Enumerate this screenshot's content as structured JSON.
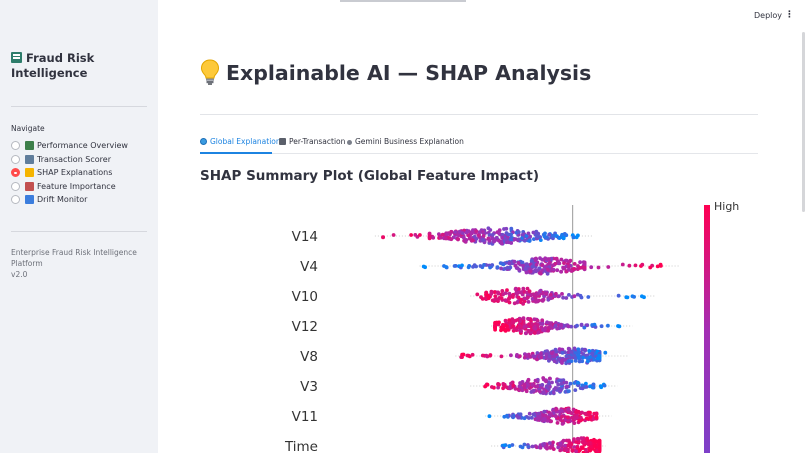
{
  "sidebar": {
    "brand": "Fraud Risk Intelligence",
    "brand_icon": "bank-building-icon",
    "nav_label": "Navigate",
    "items": [
      {
        "label": "Performance Overview",
        "icon": "bar-chart-icon",
        "icon_color": "#3d7f4a",
        "selected": false
      },
      {
        "label": "Transaction Scorer",
        "icon": "magnifier-icon",
        "icon_color": "#607d9b",
        "selected": false
      },
      {
        "label": "SHAP Explanations",
        "icon": "lightbulb-icon",
        "icon_color": "#f5b400",
        "selected": true
      },
      {
        "label": "Feature Importance",
        "icon": "line-chart-icon",
        "icon_color": "#c25050",
        "selected": false
      },
      {
        "label": "Drift Monitor",
        "icon": "refresh-icon",
        "icon_color": "#3b7ddd",
        "selected": false
      }
    ],
    "footer_line1": "Enterprise Fraud Risk Intelligence Platform",
    "footer_line2": "v2.0"
  },
  "header": {
    "deploy_label": "Deploy",
    "menu_glyph": "⋮"
  },
  "main": {
    "title": "Explainable AI — SHAP Analysis",
    "title_icon": "lightbulb-icon",
    "tabs": [
      {
        "label": "Global Explanation",
        "icon": "globe-icon",
        "active": true
      },
      {
        "label": "Per-Transaction",
        "icon": "microscope-icon",
        "active": false
      },
      {
        "label": "Gemini Business Explanation",
        "icon": "sparkle-icon",
        "active": false
      }
    ],
    "subheading": "SHAP Summary Plot (Global Feature Impact)"
  },
  "colors": {
    "accent": "#1c83e1",
    "selected_radio": "#ff4b4b",
    "shap_high": "#ff0052",
    "shap_low": "#008bfb"
  },
  "chart_data": {
    "type": "scatter",
    "title": "SHAP Summary Plot (Global Feature Impact)",
    "features": [
      "V14",
      "V4",
      "V10",
      "V12",
      "V8",
      "V3",
      "V11",
      "Time"
    ],
    "colorbar_label_high": "High",
    "series": [
      {
        "name": "V14",
        "range": [
          -6.5,
          0.3
        ],
        "dense_range": [
          -4.5,
          -0.6
        ],
        "center": -2.6,
        "low_side": "positive",
        "points": 240
      },
      {
        "name": "V4",
        "range": [
          -5.0,
          3.2
        ],
        "dense_range": [
          -3.0,
          0.1
        ],
        "center": -0.9,
        "low_side": "negative",
        "points": 240
      },
      {
        "name": "V10",
        "range": [
          -3.3,
          2.4
        ],
        "dense_range": [
          -2.6,
          0.0
        ],
        "center": -1.8,
        "low_side": "positive",
        "points": 160
      },
      {
        "name": "V12",
        "range": [
          -2.6,
          1.6
        ],
        "dense_range": [
          -2.3,
          0.0
        ],
        "center": -1.6,
        "low_side": "positive",
        "points": 200
      },
      {
        "name": "V8",
        "range": [
          -3.8,
          1.5
        ],
        "dense_range": [
          -2.0,
          0.6
        ],
        "center": 0.0,
        "low_side": "positive",
        "points": 220
      },
      {
        "name": "V3",
        "range": [
          -3.3,
          1.1
        ],
        "dense_range": [
          -2.2,
          0.4
        ],
        "center": -0.9,
        "low_side": "positive",
        "points": 180
      },
      {
        "name": "V11",
        "range": [
          -2.8,
          0.9
        ],
        "dense_range": [
          -1.7,
          0.5
        ],
        "center": -0.3,
        "low_side": "negative",
        "points": 180
      },
      {
        "name": "Time",
        "range": [
          -2.6,
          0.7
        ],
        "dense_range": [
          -1.6,
          0.6
        ],
        "center": 0.3,
        "low_side": "negative",
        "points": 180
      }
    ],
    "xlim": [
      -7.2,
      3.6
    ],
    "zero_line": 0
  }
}
